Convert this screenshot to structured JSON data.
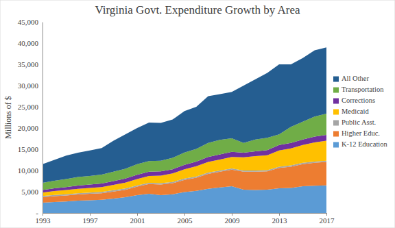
{
  "chart_data": {
    "type": "area",
    "title": "Virginia Govt. Expenditure Growth by Area",
    "y_label": "Millions of $",
    "stacked": true,
    "grid": false,
    "legend": "right",
    "x": [
      1993,
      1994,
      1995,
      1996,
      1997,
      1998,
      1999,
      2000,
      2001,
      2002,
      2003,
      2004,
      2005,
      2006,
      2007,
      2008,
      2009,
      2010,
      2011,
      2012,
      2013,
      2014,
      2015,
      2016,
      2017
    ],
    "xlim": [
      1993,
      2017
    ],
    "xticks": [
      1993,
      1997,
      2001,
      2005,
      2009,
      2013,
      2017
    ],
    "ylim": [
      0,
      45000
    ],
    "yticks": [
      {
        "value": 0,
        "label": "-"
      },
      {
        "value": 5000,
        "label": "5,000"
      },
      {
        "value": 10000,
        "label": "10,000"
      },
      {
        "value": 15000,
        "label": "15,000"
      },
      {
        "value": 20000,
        "label": "20,000"
      },
      {
        "value": 25000,
        "label": "25,000"
      },
      {
        "value": 30000,
        "label": "30,000"
      },
      {
        "value": 35000,
        "label": "35,000"
      },
      {
        "value": 40000,
        "label": "40,000"
      },
      {
        "value": 45000,
        "label": "45,000"
      }
    ],
    "series": [
      {
        "name": "K-12 Education",
        "color": "#5b9bd5",
        "values": [
          2400,
          2600,
          2700,
          2900,
          3000,
          3100,
          3400,
          3700,
          4200,
          4500,
          4200,
          4400,
          4900,
          5200,
          5700,
          6000,
          6300,
          5500,
          5400,
          5500,
          5800,
          5900,
          6300,
          6400,
          6500
        ]
      },
      {
        "name": "Higher Educ.",
        "color": "#ed7d31",
        "values": [
          1300,
          1350,
          1400,
          1450,
          1500,
          1550,
          1650,
          1750,
          2000,
          2300,
          2500,
          2600,
          2900,
          3100,
          3500,
          3700,
          3900,
          4200,
          4300,
          4300,
          4800,
          5000,
          5200,
          5400,
          5500
        ]
      },
      {
        "name": "Public Asst.",
        "color": "#a5a5a5",
        "values": [
          300,
          300,
          300,
          300,
          300,
          300,
          300,
          300,
          300,
          300,
          300,
          300,
          300,
          300,
          300,
          300,
          300,
          300,
          300,
          300,
          300,
          300,
          300,
          300,
          300
        ]
      },
      {
        "name": "Medicaid",
        "color": "#ffc000",
        "values": [
          800,
          900,
          1000,
          1050,
          1100,
          1150,
          1250,
          1400,
          1500,
          1600,
          1800,
          2000,
          2200,
          2400,
          2500,
          2600,
          2700,
          3100,
          3400,
          3500,
          3800,
          4000,
          4200,
          4500,
          4700
        ]
      },
      {
        "name": "Corrections",
        "color": "#7030a0",
        "values": [
          600,
          650,
          700,
          750,
          800,
          850,
          900,
          950,
          1000,
          1000,
          1000,
          1000,
          1050,
          1100,
          1200,
          1200,
          1200,
          1100,
          1100,
          1200,
          1300,
          1300,
          1300,
          1400,
          1400
        ]
      },
      {
        "name": "Transportation",
        "color": "#70ad47",
        "values": [
          1700,
          1800,
          1900,
          2000,
          2000,
          2100,
          2200,
          2300,
          2500,
          2500,
          2500,
          2700,
          2900,
          3000,
          3300,
          3400,
          3200,
          2300,
          2800,
          2900,
          2500,
          3800,
          4200,
          4700,
          5000
        ]
      },
      {
        "name": "All Other",
        "color": "#255e91",
        "values": [
          4400,
          4900,
          5500,
          5750,
          6000,
          6250,
          7300,
          8100,
          8500,
          9100,
          8900,
          9000,
          9750,
          9900,
          11000,
          10800,
          10900,
          13500,
          14200,
          15300,
          16500,
          14700,
          15000,
          15600,
          15600
        ]
      }
    ]
  }
}
